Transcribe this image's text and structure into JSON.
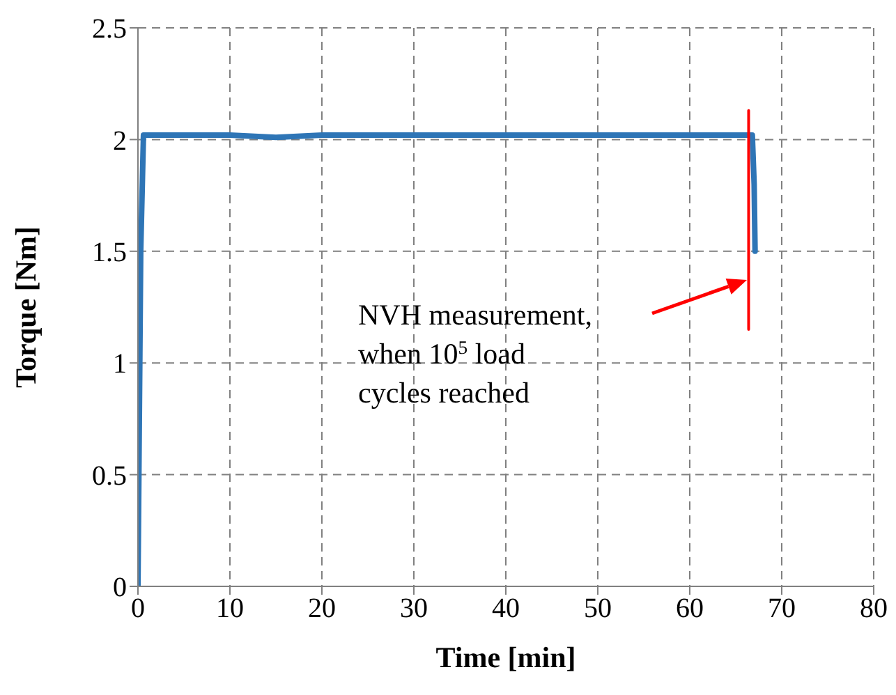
{
  "chart_data": {
    "type": "line",
    "xlabel": "Time [min]",
    "ylabel": "Torque [Nm]",
    "xlim": [
      0,
      80
    ],
    "xticks": [
      0,
      10,
      20,
      30,
      40,
      50,
      60,
      70,
      80
    ],
    "ylim": [
      0,
      2.5
    ],
    "yticks": [
      0,
      0.5,
      1,
      1.5,
      2,
      2.5
    ],
    "grid": true,
    "marker": "none",
    "line_style": "solid",
    "series": [
      {
        "color": "#2e75b6",
        "x": [
          0,
          0.3,
          0.6,
          5,
          10,
          15,
          20,
          25,
          30,
          35,
          40,
          45,
          50,
          55,
          60,
          65,
          66.8,
          67.0,
          67.1
        ],
        "values": [
          0,
          1.5,
          2.02,
          2.02,
          2.02,
          2.01,
          2.02,
          2.02,
          2.02,
          2.02,
          2.02,
          2.02,
          2.02,
          2.02,
          2.02,
          2.02,
          2.02,
          1.8,
          1.5
        ]
      },
      {
        "color": "#ff0000",
        "x": [
          66.4,
          66.4
        ],
        "values": [
          2.13,
          1.15
        ]
      }
    ],
    "annotations": [
      "NVH measurement,\nwhen 10$^{5}$ load\ncycles reached"
    ]
  }
}
